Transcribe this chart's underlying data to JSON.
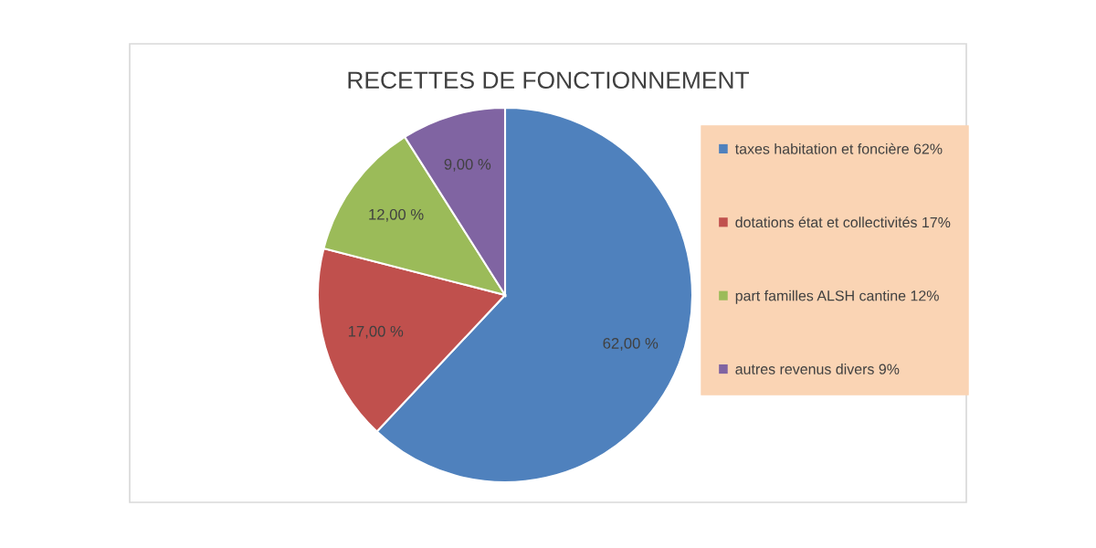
{
  "chart_data": {
    "type": "pie",
    "title": "RECETTES DE FONCTIONNEMENT",
    "categories": [
      "taxes habitation et foncière 62%",
      "dotations état et collectivités 17%",
      "part familles ALSH cantine 12%",
      "autres revenus divers 9%"
    ],
    "values": [
      62,
      17,
      12,
      9
    ],
    "colors": [
      "#4f81bd",
      "#c0504d",
      "#9bbb59",
      "#8064a2"
    ],
    "value_labels": [
      "62,00 %",
      "17,00 %",
      "12,00 %",
      "9,00 %"
    ],
    "legend": "right"
  }
}
